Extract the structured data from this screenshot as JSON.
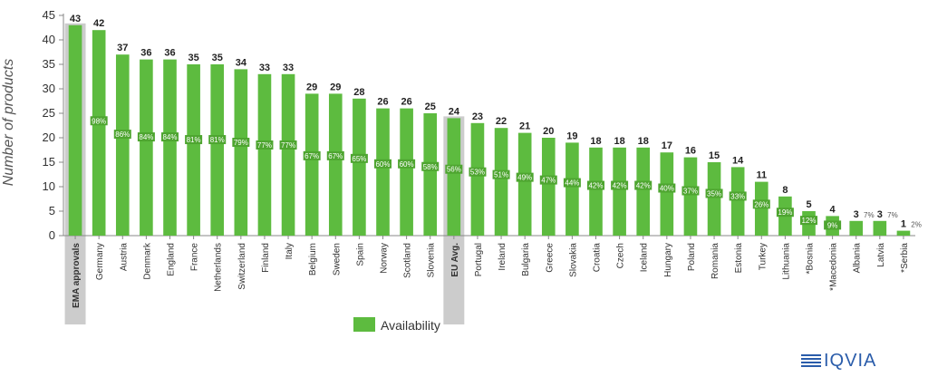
{
  "chart_data": {
    "type": "bar",
    "ylabel": "Number of products",
    "ylim": [
      0,
      45
    ],
    "yticks": [
      0,
      5,
      10,
      15,
      20,
      25,
      30,
      35,
      40,
      45
    ],
    "legend": {
      "label": "Availability",
      "placement": "bottom-center"
    },
    "highlight_color": "#cccccc",
    "bar_color": "#5dbb3f",
    "categories": [
      "EMA approvals",
      "Germany",
      "Austria",
      "Denmark",
      "England",
      "France",
      "Netherlands",
      "Switzerland",
      "Finland",
      "Italy",
      "Belgium",
      "Sweden",
      "Spain",
      "Norway",
      "Scotland",
      "Slovenia",
      "EU Avg.",
      "Portugal",
      "Ireland",
      "Bulgaria",
      "Greece",
      "Slovakia",
      "Croatia",
      "Czech",
      "Iceland",
      "Hungary",
      "Poland",
      "Romania",
      "Estonia",
      "Turkey",
      "Lithuania",
      "*Bosnia",
      "*Macedonia",
      "Albania",
      "Latvia",
      "*Serbia"
    ],
    "values": [
      43,
      42,
      37,
      36,
      36,
      35,
      35,
      34,
      33,
      33,
      29,
      29,
      28,
      26,
      26,
      25,
      24,
      23,
      22,
      21,
      20,
      19,
      18,
      18,
      18,
      17,
      16,
      15,
      14,
      11,
      8,
      5,
      4,
      3,
      3,
      1
    ],
    "availability_pct": [
      "",
      "98%",
      "86%",
      "84%",
      "84%",
      "81%",
      "81%",
      "79%",
      "77%",
      "77%",
      "67%",
      "67%",
      "65%",
      "60%",
      "60%",
      "58%",
      "56%",
      "53%",
      "51%",
      "49%",
      "47%",
      "44%",
      "42%",
      "42%",
      "42%",
      "40%",
      "37%",
      "35%",
      "33%",
      "26%",
      "19%",
      "12%",
      "9%",
      "7%",
      "7%",
      "2%"
    ],
    "highlighted": [
      "EMA approvals",
      "EU Avg."
    ],
    "grid": false
  },
  "logo": {
    "name": "IQVIA",
    "icon": "iqvia-lines-icon",
    "color": "#2a5caa"
  }
}
